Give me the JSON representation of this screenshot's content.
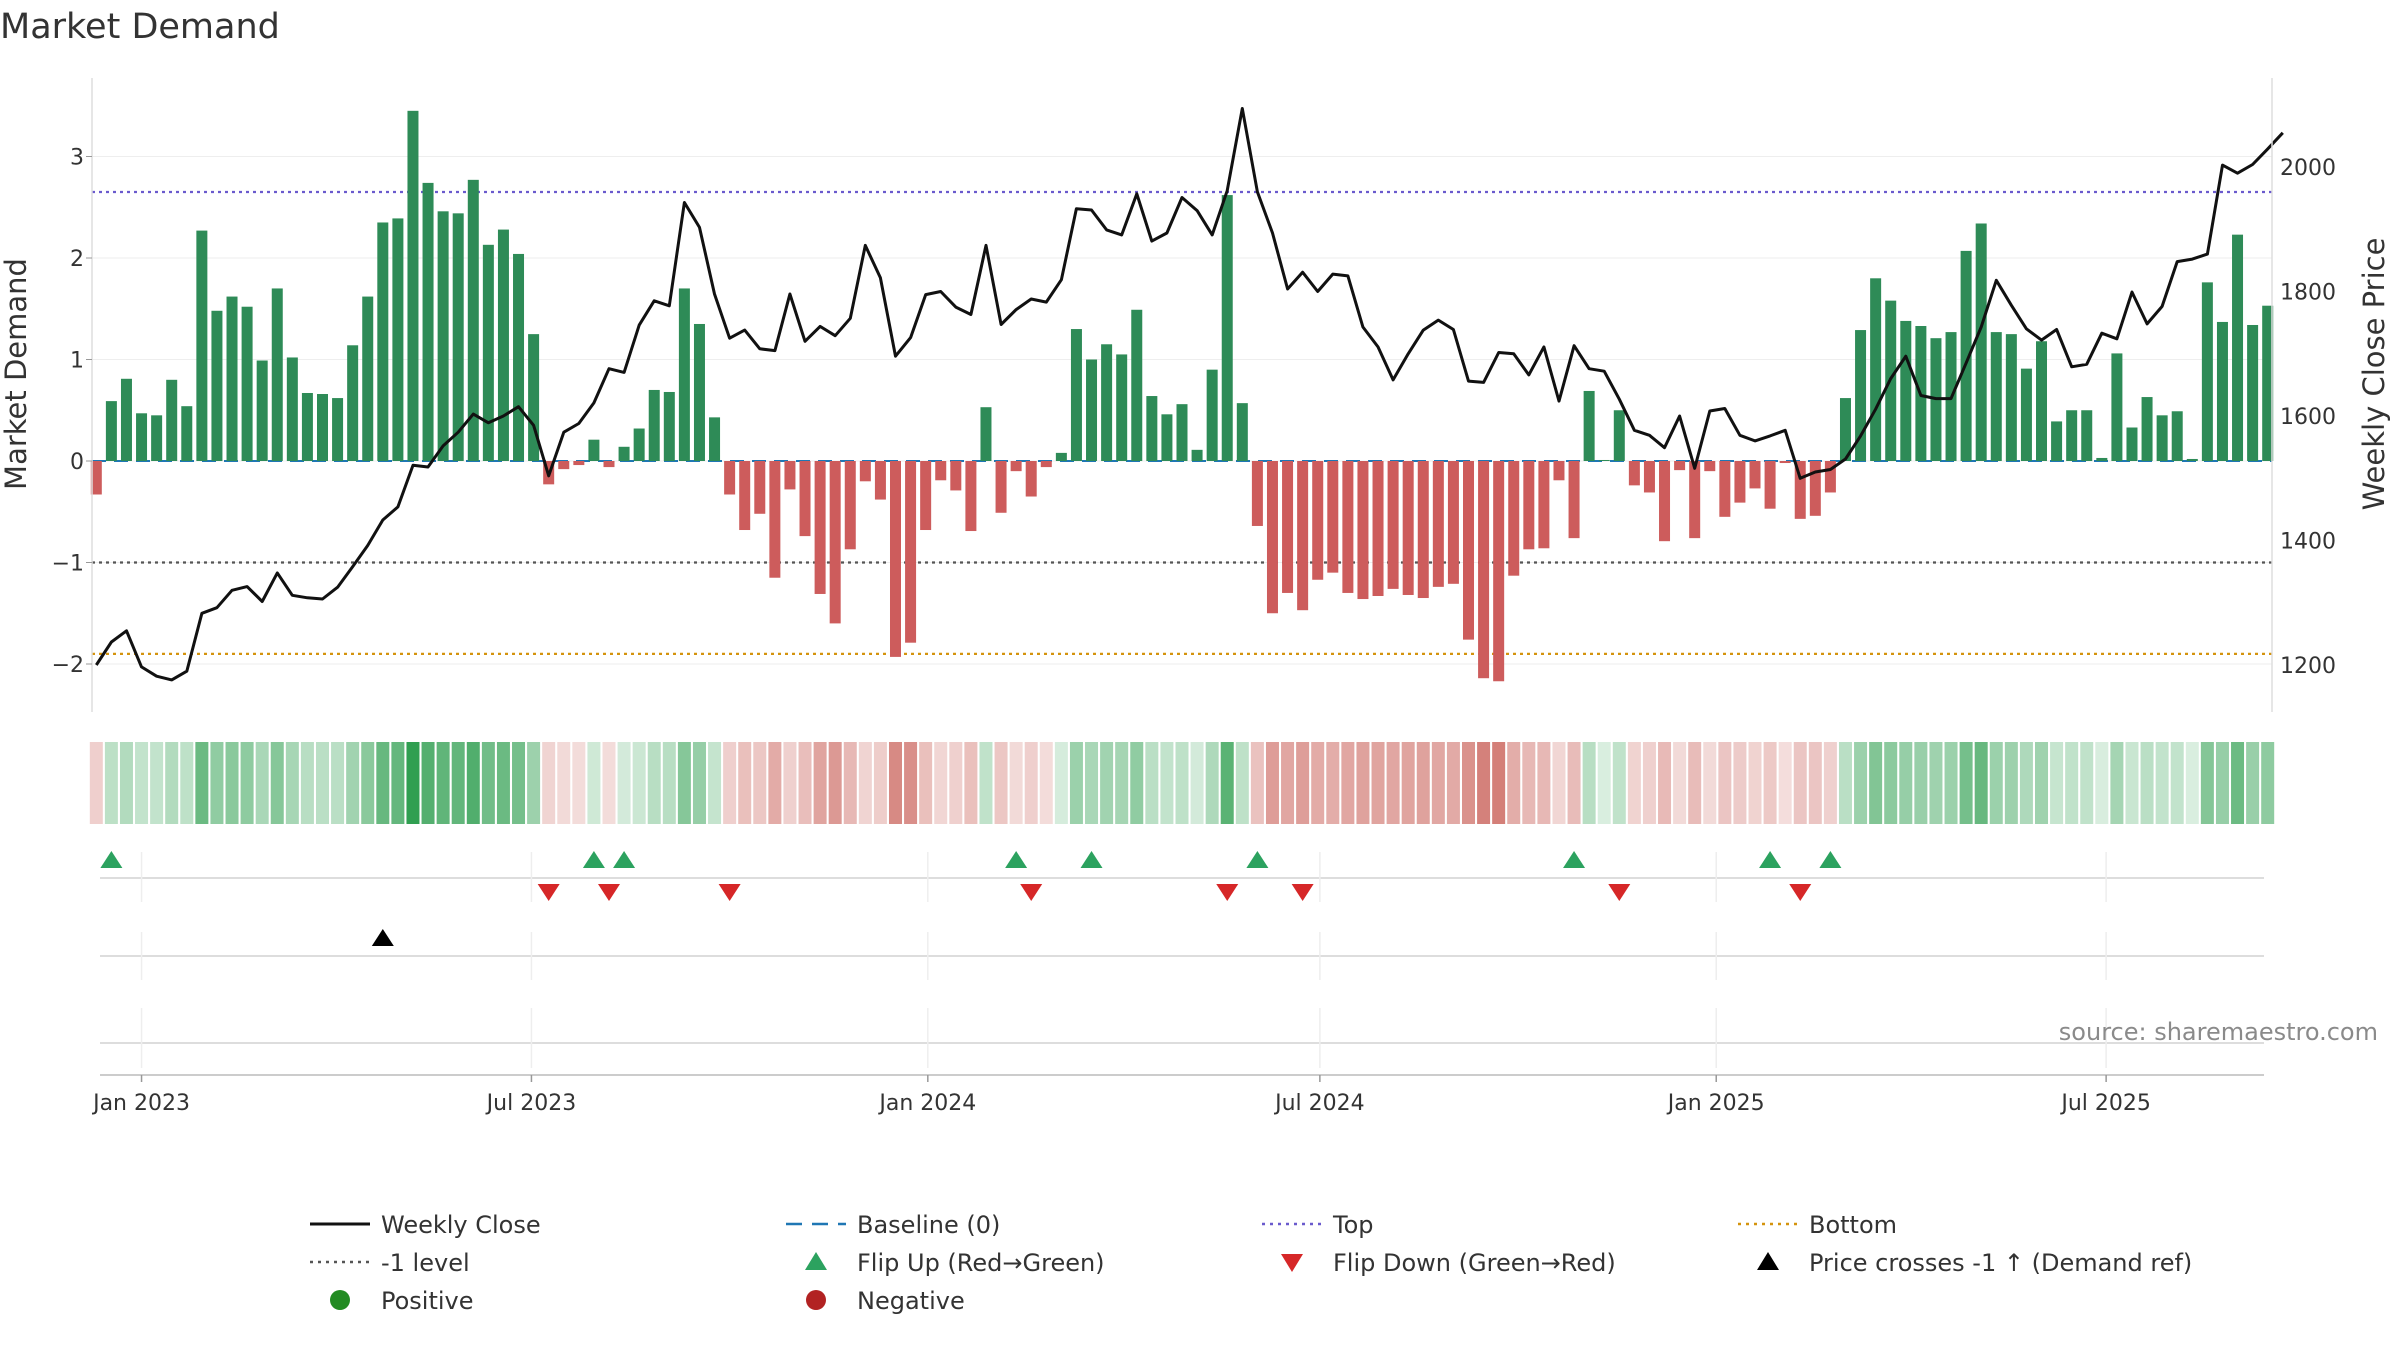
{
  "chart_data": {
    "type": "bar",
    "title": "Market Demand",
    "ylabel": "Market Demand",
    "y2label": "Weekly Close Price",
    "ylim": [
      -2.5,
      3.7
    ],
    "y2lim": [
      1130,
      2130
    ],
    "yticks": [
      "−2",
      "−1",
      "0",
      "1",
      "2",
      "3"
    ],
    "y2ticks": [
      "1200",
      "1400",
      "1600",
      "1800",
      "2000"
    ],
    "x_start": "2022-12-09",
    "x_end": "2025-09-16",
    "xticks": [
      {
        "date": "2023-01-01",
        "label": "Jan 2023"
      },
      {
        "date": "2023-07-01",
        "label": "Jul 2023"
      },
      {
        "date": "2024-01-01",
        "label": "Jan 2024"
      },
      {
        "date": "2024-07-01",
        "label": "Jul 2024"
      },
      {
        "date": "2025-01-01",
        "label": "Jan 2025"
      },
      {
        "date": "2025-07-01",
        "label": "Jul 2025"
      }
    ],
    "weeks_start": "2022-12-11",
    "demand": [
      -0.33,
      0.59,
      0.81,
      0.47,
      0.45,
      0.8,
      0.54,
      2.27,
      1.48,
      1.62,
      1.52,
      0.99,
      1.7,
      1.02,
      0.67,
      0.66,
      0.62,
      1.14,
      1.62,
      2.35,
      2.39,
      3.45,
      2.74,
      2.46,
      2.44,
      2.77,
      2.13,
      2.28,
      2.04,
      1.25,
      -0.23,
      -0.08,
      -0.04,
      0.21,
      -0.06,
      0.14,
      0.32,
      0.7,
      0.68,
      1.7,
      1.35,
      0.43,
      -0.33,
      -0.68,
      -0.52,
      -1.15,
      -0.28,
      -0.74,
      -1.31,
      -1.6,
      -0.87,
      -0.2,
      -0.38,
      -1.93,
      -1.79,
      -0.68,
      -0.19,
      -0.29,
      -0.69,
      0.53,
      -0.51,
      -0.1,
      -0.35,
      -0.06,
      0.08,
      1.3,
      1.0,
      1.15,
      1.05,
      1.49,
      0.64,
      0.46,
      0.56,
      0.11,
      0.9,
      2.62,
      0.57,
      -0.64,
      -1.5,
      -1.3,
      -1.47,
      -1.17,
      -1.1,
      -1.3,
      -1.36,
      -1.33,
      -1.26,
      -1.32,
      -1.35,
      -1.24,
      -1.21,
      -1.76,
      -2.14,
      -2.17,
      -1.13,
      -0.87,
      -0.86,
      -0.19,
      -0.76,
      0.69,
      0.01,
      0.5,
      -0.24,
      -0.31,
      -0.79,
      -0.09,
      -0.76,
      -0.1,
      -0.55,
      -0.41,
      -0.27,
      -0.47,
      -0.02,
      -0.57,
      -0.54,
      -0.31,
      0.62,
      1.29,
      1.8,
      1.58,
      1.38,
      1.33,
      1.21,
      1.27,
      2.07,
      2.34,
      1.27,
      1.25,
      0.91,
      1.18,
      0.39,
      0.5,
      0.5,
      0.03,
      1.06,
      0.33,
      0.63,
      0.45,
      0.49,
      0.02,
      1.76,
      1.37,
      2.23,
      1.34,
      1.53
    ],
    "close": [
      1200,
      1237,
      1255,
      1197,
      1182,
      1176,
      1190,
      1283,
      1292,
      1320,
      1326,
      1302,
      1348,
      1312,
      1308,
      1306,
      1325,
      1358,
      1392,
      1433,
      1454,
      1521,
      1518,
      1552,
      1574,
      1603,
      1589,
      1600,
      1615,
      1585,
      1504,
      1574,
      1588,
      1621,
      1676,
      1670,
      1746,
      1785,
      1777,
      1943,
      1903,
      1796,
      1725,
      1738,
      1708,
      1705,
      1796,
      1720,
      1744,
      1729,
      1757,
      1874,
      1822,
      1696,
      1726,
      1795,
      1800,
      1775,
      1763,
      1874,
      1747,
      1771,
      1788,
      1783,
      1819,
      1933,
      1931,
      1899,
      1891,
      1957,
      1881,
      1894,
      1951,
      1930,
      1891,
      1962,
      2094,
      1960,
      1894,
      1804,
      1831,
      1800,
      1828,
      1825,
      1743,
      1711,
      1658,
      1700,
      1738,
      1754,
      1739,
      1656,
      1654,
      1702,
      1700,
      1666,
      1711,
      1624,
      1713,
      1676,
      1672,
      1627,
      1577,
      1569,
      1549,
      1600,
      1516,
      1608,
      1612,
      1569,
      1560,
      1568,
      1577,
      1500,
      1510,
      1514,
      1531,
      1568,
      1611,
      1660,
      1696,
      1633,
      1628,
      1628,
      1685,
      1743,
      1818,
      1778,
      1740,
      1722,
      1739,
      1679,
      1683,
      1733,
      1724,
      1799,
      1748,
      1776,
      1848,
      1852,
      1860,
      2003,
      1990,
      2004,
      2029,
      2055
    ],
    "lines": {
      "top": 2.65,
      "minus_one": -1.0,
      "bottom": -1.9,
      "baseline": 0
    },
    "flip_up": [
      "2022-12-18",
      "2023-07-30",
      "2023-08-13",
      "2024-02-11",
      "2024-03-17",
      "2024-06-02",
      "2024-10-27",
      "2025-01-26",
      "2025-02-23"
    ],
    "flip_down": [
      "2023-07-09",
      "2023-08-06",
      "2023-10-01",
      "2024-02-18",
      "2024-05-19",
      "2024-06-23",
      "2024-11-17",
      "2025-02-09"
    ],
    "price_cross": [
      "2023-04-23"
    ],
    "legend": [
      {
        "label": "Weekly Close",
        "kind": "line",
        "color": "#111111"
      },
      {
        "label": "Baseline (0)",
        "kind": "dash",
        "color": "#1f77b4"
      },
      {
        "label": "Top",
        "kind": "dot",
        "color": "#6a5acd"
      },
      {
        "label": "Bottom",
        "kind": "dot",
        "color": "#d4930d"
      },
      {
        "label": "-1 level",
        "kind": "dot",
        "color": "#555555"
      },
      {
        "label": "Flip Up (Red→Green)",
        "kind": "tri-up",
        "color": "#2ca25f"
      },
      {
        "label": "Flip Down (Green→Red)",
        "kind": "tri-down",
        "color": "#d62728"
      },
      {
        "label": "Price crosses -1 ↑ (Demand ref)",
        "kind": "tri-up",
        "color": "#000000"
      },
      {
        "label": "Positive",
        "kind": "circle",
        "color": "#228b22"
      },
      {
        "label": "Negative",
        "kind": "circle",
        "color": "#b22222"
      }
    ],
    "colors": {
      "positive": "#2e8b57",
      "negative": "#cd5c5c",
      "heat_pos": "#2e9e4f",
      "heat_neg": "#c0453c"
    }
  },
  "source": "source: sharemaestro.com"
}
